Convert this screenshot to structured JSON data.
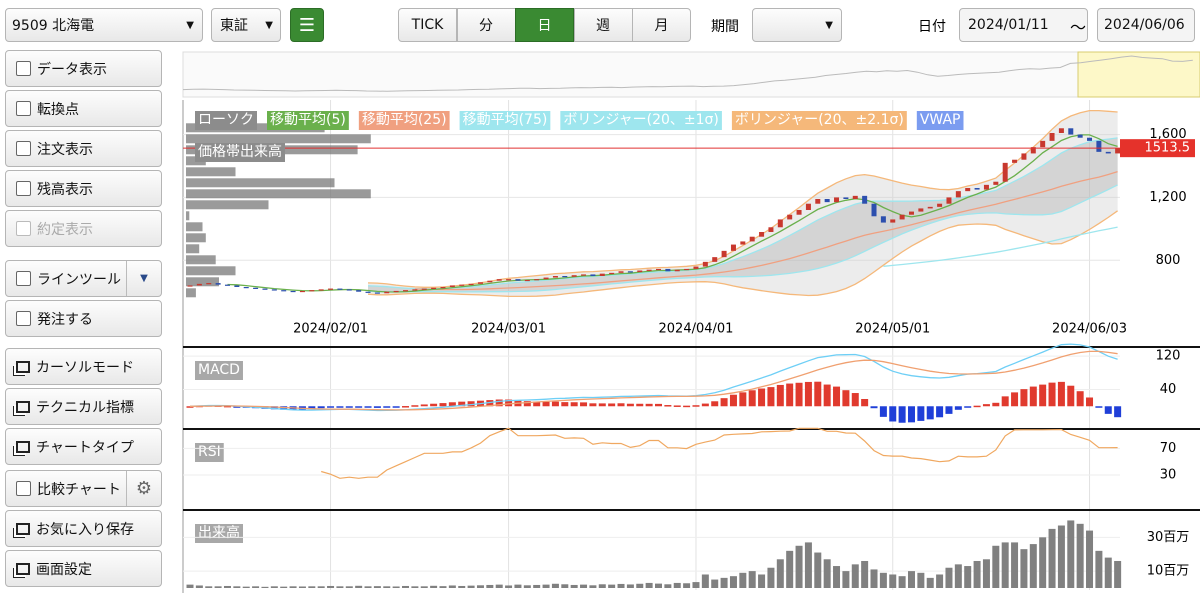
{
  "toolbar": {
    "symbol": "9509 北海電",
    "market": "東証",
    "intervals": [
      "TICK",
      "分",
      "日",
      "週",
      "月"
    ],
    "active_interval": 2,
    "period_label": "期間",
    "date_label": "日付",
    "date_from": "2024/01/11",
    "date_sep": "〜",
    "date_to": "2024/06/06"
  },
  "sidebar": [
    {
      "label": "データ表示",
      "kind": "checkbox"
    },
    {
      "label": "転換点",
      "kind": "checkbox"
    },
    {
      "label": "注文表示",
      "kind": "checkbox"
    },
    {
      "label": "残高表示",
      "kind": "checkbox"
    },
    {
      "label": "約定表示",
      "kind": "checkbox",
      "disabled": true
    },
    {
      "label": "ラインツール",
      "kind": "checkbox",
      "dropdown": true
    },
    {
      "label": "発注する",
      "kind": "checkbox"
    },
    {
      "label": "カーソルモード",
      "kind": "window"
    },
    {
      "label": "テクニカル指標",
      "kind": "window"
    },
    {
      "label": "チャートタイプ",
      "kind": "window"
    },
    {
      "label": "比較チャート",
      "kind": "checkbox",
      "gear": true
    },
    {
      "label": "お気に入り保存",
      "kind": "window"
    },
    {
      "label": "画面設定",
      "kind": "window"
    }
  ],
  "chart_data": [
    {
      "type": "candlestick",
      "legend": [
        {
          "name": "ローソク",
          "color": "#8c8c8c"
        },
        {
          "name": "移動平均(5)",
          "color": "#6ab04c"
        },
        {
          "name": "移動平均(25)",
          "color": "#f0a080"
        },
        {
          "name": "移動平均(75)",
          "color": "#9ee6ee"
        },
        {
          "name": "ボリンジャー(20、±1σ)",
          "color": "#9ee6ee"
        },
        {
          "name": "ボリンジャー(20、±2.1σ)",
          "color": "#f5b87a"
        },
        {
          "name": "VWAP",
          "color": "#7b9cf0"
        }
      ],
      "price_volume_label": "価格帯出来高",
      "price_volume": {
        "prices": [
          1640,
          1570,
          1500,
          1430,
          1360,
          1290,
          1220,
          1150,
          1080,
          1010,
          940,
          870,
          800,
          730,
          660,
          590
        ],
        "values": [
          42,
          56,
          52,
          6,
          15,
          45,
          56,
          25,
          1,
          5,
          6,
          4,
          9,
          15,
          10,
          3
        ]
      },
      "close": [
        640,
        650,
        655,
        645,
        640,
        630,
        625,
        620,
        615,
        610,
        605,
        600,
        605,
        610,
        615,
        620,
        615,
        610,
        600,
        595,
        590,
        600,
        605,
        610,
        615,
        620,
        625,
        630,
        640,
        645,
        650,
        660,
        670,
        680,
        680,
        670,
        675,
        680,
        690,
        700,
        695,
        705,
        710,
        700,
        715,
        720,
        730,
        725,
        735,
        740,
        745,
        730,
        740,
        745,
        760,
        790,
        820,
        860,
        900,
        920,
        950,
        980,
        1010,
        1060,
        1090,
        1120,
        1160,
        1190,
        1170,
        1200,
        1190,
        1210,
        1160,
        1080,
        1040,
        1060,
        1090,
        1110,
        1130,
        1140,
        1160,
        1200,
        1240,
        1260,
        1250,
        1280,
        1300,
        1420,
        1440,
        1480,
        1520,
        1560,
        1610,
        1640,
        1600,
        1580,
        1560,
        1490,
        1480,
        1513.5
      ],
      "last_price": 1513.5,
      "xticks": [
        {
          "value": 15,
          "label": "2024/02/01"
        },
        {
          "value": 34,
          "label": "2024/03/01"
        },
        {
          "value": 54,
          "label": "2024/04/01"
        },
        {
          "value": 75,
          "label": "2024/05/01"
        },
        {
          "value": 96,
          "label": "2024/06/03"
        }
      ],
      "ylim": [
        420,
        1820
      ],
      "yticks": [
        800,
        {
          "value": 1200,
          "label": "1,200"
        },
        {
          "value": 1600,
          "label": "1,600"
        }
      ]
    },
    {
      "type": "macd",
      "title": "MACD",
      "ylim": [
        -52,
        137
      ],
      "yticks": [
        40,
        120
      ]
    },
    {
      "type": "rsi",
      "title": "RSI",
      "ylim": [
        -21,
        96
      ],
      "yticks": [
        30,
        70
      ]
    },
    {
      "type": "bar",
      "title": "出来高",
      "color": "#808080",
      "values": [
        2,
        1.5,
        1,
        1,
        1.2,
        1,
        0.8,
        1,
        0.7,
        1,
        0.8,
        1,
        0.9,
        1,
        1,
        1.2,
        1,
        1,
        1.3,
        1,
        1.1,
        1,
        0.9,
        1.2,
        1,
        1,
        1.3,
        1.1,
        1.5,
        1.2,
        1.4,
        1.6,
        1.8,
        2,
        1.5,
        2,
        1.6,
        1.8,
        2,
        2.5,
        2.2,
        1.8,
        2,
        1.6,
        2.2,
        2,
        2.4,
        2.1,
        2.5,
        3,
        2.6,
        2.2,
        3,
        2.8,
        3.5,
        8,
        5,
        6,
        7,
        9,
        10,
        8,
        12,
        17,
        22,
        25,
        27,
        21,
        17,
        13,
        10,
        14,
        16,
        11,
        9,
        8,
        7,
        10,
        9,
        6,
        8,
        12,
        14,
        13,
        16,
        17,
        25,
        27,
        27,
        23,
        26,
        30,
        35,
        37,
        40,
        38,
        34,
        22,
        18,
        16
      ],
      "ylim": [
        0,
        45
      ],
      "yticks": [
        {
          "value": 10,
          "label": "10百万"
        },
        {
          "value": 30,
          "label": "30百万"
        }
      ]
    }
  ]
}
